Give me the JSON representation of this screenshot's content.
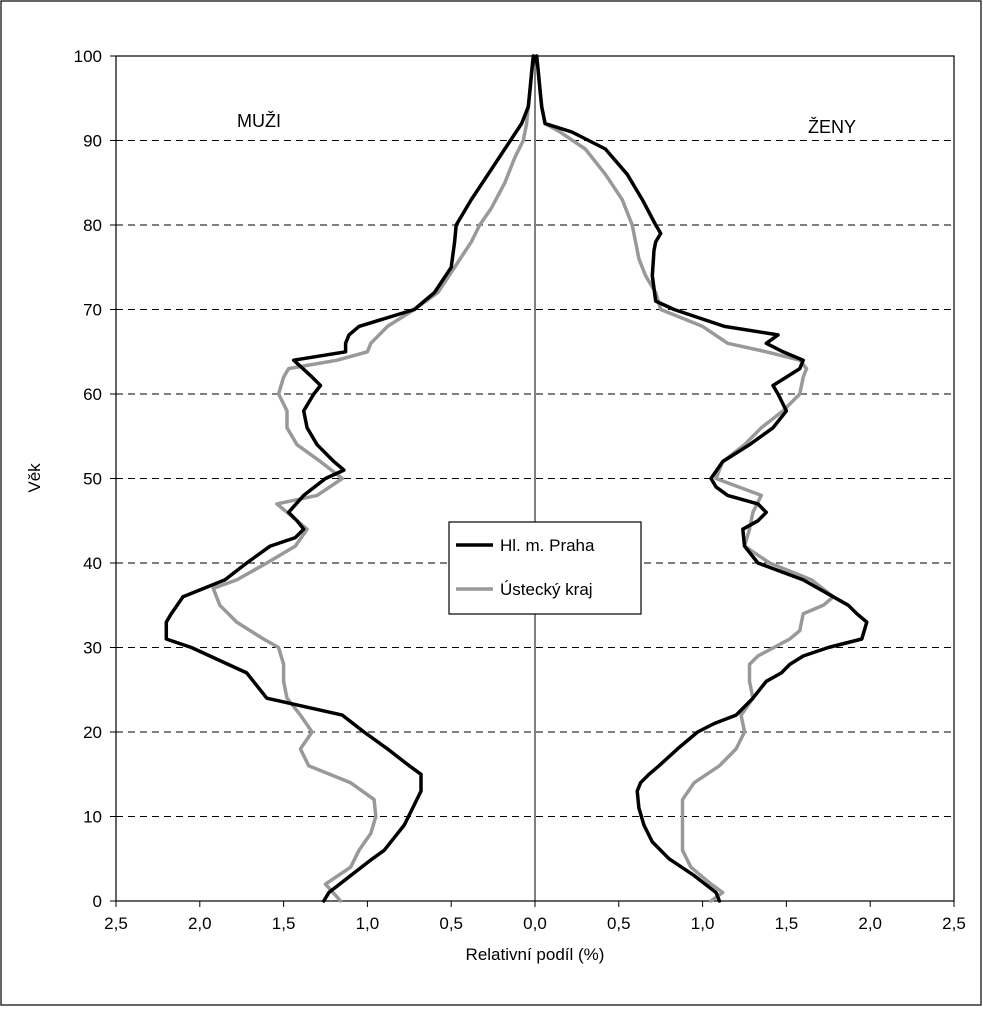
{
  "chart_data": {
    "type": "line",
    "subtype": "population-pyramid",
    "xlabel": "Relativní podíl (%)",
    "ylabel": "Věk",
    "xlim": [
      -2.5,
      2.5
    ],
    "ylim": [
      0,
      100
    ],
    "x_tick_values": [
      -2.5,
      -2.0,
      -1.5,
      -1.0,
      -0.5,
      0.0,
      0.5,
      1.0,
      1.5,
      2.0,
      2.5
    ],
    "x_tick_labels": [
      "2,5",
      "2,0",
      "1,5",
      "1,0",
      "0,5",
      "0,0",
      "0,5",
      "1,0",
      "1,5",
      "2,0",
      "2,5"
    ],
    "y_ticks": [
      0,
      10,
      20,
      30,
      40,
      50,
      60,
      70,
      80,
      90,
      100
    ],
    "horizontal_grid": "dashed",
    "legend_position": "center",
    "annotations": [
      {
        "text": "MUŽI",
        "side": "left"
      },
      {
        "text": "ŽENY",
        "side": "right"
      }
    ],
    "series": [
      {
        "name": "Hl. m. Praha",
        "color": "#000000",
        "men": {
          "age": [
            0,
            1,
            3,
            5,
            6,
            8,
            9,
            11,
            13,
            15,
            16,
            18,
            20,
            22,
            24,
            26,
            27,
            30,
            31,
            33,
            34,
            36,
            38,
            40,
            42,
            43,
            44,
            45,
            46,
            48,
            50,
            51,
            52,
            54,
            56,
            58,
            60,
            61,
            62,
            64,
            65,
            66,
            67,
            68,
            70,
            72,
            75,
            78,
            80,
            83,
            86,
            89,
            92,
            94,
            96,
            98,
            100
          ],
          "value": [
            1.26,
            1.23,
            1.1,
            0.97,
            0.9,
            0.82,
            0.78,
            0.73,
            0.68,
            0.68,
            0.75,
            0.88,
            1.02,
            1.15,
            1.6,
            1.68,
            1.72,
            2.05,
            2.2,
            2.2,
            2.17,
            2.1,
            1.85,
            1.72,
            1.58,
            1.43,
            1.38,
            1.42,
            1.47,
            1.38,
            1.25,
            1.14,
            1.2,
            1.3,
            1.36,
            1.38,
            1.32,
            1.28,
            1.33,
            1.44,
            1.13,
            1.13,
            1.11,
            1.05,
            0.72,
            0.6,
            0.5,
            0.48,
            0.47,
            0.38,
            0.28,
            0.18,
            0.08,
            0.04,
            0.03,
            0.02,
            0.01
          ]
        },
        "women": {
          "age": [
            0,
            1,
            3,
            5,
            7,
            9,
            11,
            13,
            14,
            15,
            16,
            18,
            20,
            21,
            22,
            24,
            26,
            27,
            28,
            29,
            30,
            31,
            33,
            34,
            35,
            36,
            38,
            40,
            42,
            44,
            45,
            46,
            47,
            48,
            49,
            50,
            52,
            54,
            56,
            58,
            60,
            61,
            62,
            63,
            64,
            65,
            66,
            67,
            68,
            70,
            71,
            74,
            77,
            78,
            79,
            80,
            83,
            86,
            89,
            91,
            92,
            94,
            96,
            98,
            100
          ],
          "value": [
            1.1,
            1.08,
            0.95,
            0.8,
            0.7,
            0.65,
            0.62,
            0.61,
            0.63,
            0.68,
            0.74,
            0.85,
            0.97,
            1.07,
            1.2,
            1.3,
            1.38,
            1.47,
            1.52,
            1.6,
            1.75,
            1.95,
            1.98,
            1.92,
            1.87,
            1.78,
            1.6,
            1.33,
            1.25,
            1.24,
            1.33,
            1.38,
            1.33,
            1.15,
            1.08,
            1.05,
            1.12,
            1.28,
            1.42,
            1.5,
            1.45,
            1.42,
            1.5,
            1.58,
            1.6,
            1.48,
            1.38,
            1.45,
            1.13,
            0.83,
            0.72,
            0.7,
            0.71,
            0.72,
            0.75,
            0.72,
            0.64,
            0.55,
            0.42,
            0.22,
            0.06,
            0.04,
            0.03,
            0.02,
            0.01
          ]
        }
      },
      {
        "name": "Ústecký kraj",
        "color": "#999999",
        "men": {
          "age": [
            0,
            2,
            4,
            6,
            8,
            10,
            12,
            14,
            16,
            18,
            20,
            22,
            24,
            26,
            28,
            30,
            31,
            33,
            35,
            37,
            38,
            40,
            42,
            44,
            46,
            47,
            48,
            50,
            52,
            54,
            56,
            58,
            60,
            62,
            63,
            64,
            65,
            66,
            68,
            70,
            72,
            75,
            78,
            80,
            82,
            85,
            88,
            90,
            92,
            94,
            96,
            98,
            100
          ],
          "value": [
            1.16,
            1.25,
            1.1,
            1.05,
            0.98,
            0.95,
            0.96,
            1.1,
            1.35,
            1.4,
            1.33,
            1.4,
            1.48,
            1.5,
            1.5,
            1.53,
            1.62,
            1.78,
            1.88,
            1.92,
            1.78,
            1.6,
            1.43,
            1.36,
            1.48,
            1.54,
            1.3,
            1.15,
            1.28,
            1.42,
            1.48,
            1.48,
            1.53,
            1.5,
            1.47,
            1.18,
            1.0,
            0.98,
            0.88,
            0.72,
            0.58,
            0.48,
            0.38,
            0.33,
            0.26,
            0.18,
            0.12,
            0.07,
            0.05,
            0.04,
            0.03,
            0.02,
            0.01
          ]
        },
        "women": {
          "age": [
            0,
            1,
            2,
            4,
            6,
            8,
            10,
            12,
            14,
            16,
            18,
            20,
            22,
            24,
            26,
            28,
            29,
            31,
            32,
            34,
            35,
            36,
            38,
            40,
            42,
            44,
            46,
            48,
            50,
            52,
            54,
            56,
            58,
            60,
            62,
            63,
            64,
            65,
            66,
            68,
            70,
            72,
            74,
            76,
            78,
            80,
            83,
            86,
            89,
            91,
            92,
            94,
            96,
            98,
            100
          ],
          "value": [
            1.05,
            1.12,
            1.05,
            0.93,
            0.88,
            0.88,
            0.88,
            0.88,
            0.95,
            1.1,
            1.2,
            1.25,
            1.23,
            1.3,
            1.28,
            1.28,
            1.33,
            1.52,
            1.58,
            1.6,
            1.72,
            1.78,
            1.65,
            1.4,
            1.25,
            1.28,
            1.3,
            1.35,
            1.08,
            1.12,
            1.25,
            1.35,
            1.48,
            1.58,
            1.6,
            1.62,
            1.58,
            1.38,
            1.15,
            1.0,
            0.75,
            0.72,
            0.66,
            0.62,
            0.6,
            0.58,
            0.52,
            0.42,
            0.3,
            0.15,
            0.06,
            0.04,
            0.03,
            0.02,
            0.01
          ]
        }
      }
    ]
  }
}
